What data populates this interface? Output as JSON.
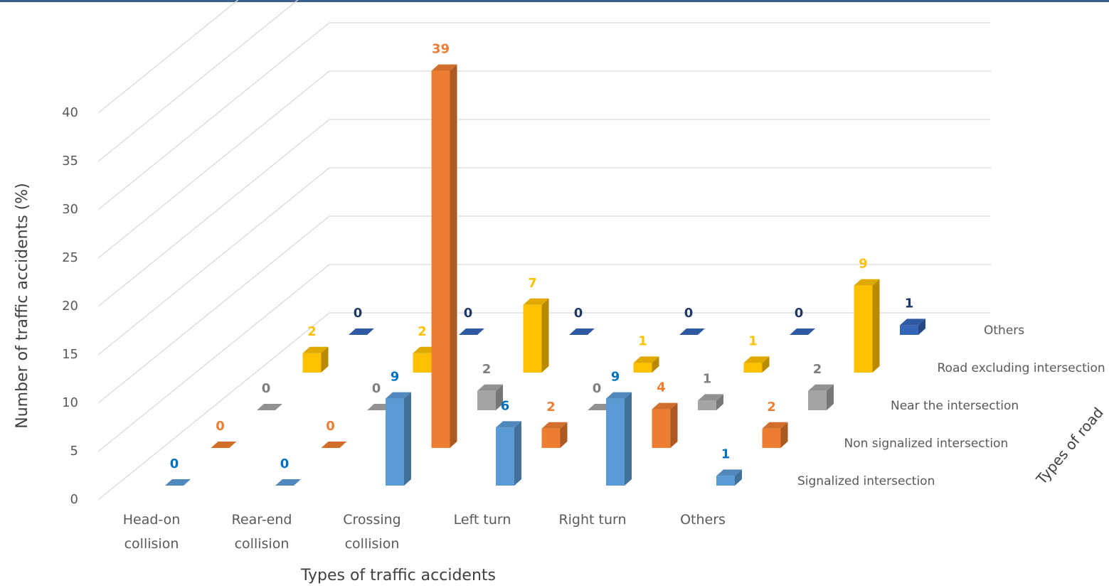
{
  "chart_data": {
    "type": "bar3d",
    "y_label": "Number of traffic accidents (%)",
    "x_label": "Types of traffic accidents",
    "z_label": "Types of road",
    "categories": [
      "Head-on collision",
      "Rear-end collision",
      "Crossing collision",
      "Left turn",
      "Right turn",
      "Others"
    ],
    "series": [
      {
        "name": "Signalized intersection",
        "color": "#5b9bd5",
        "label_color": "#0070c0",
        "values": [
          0,
          0,
          9,
          6,
          9,
          1
        ]
      },
      {
        "name": "Non signalized intersection",
        "color": "#ed7d31",
        "label_color": "#ed7d31",
        "values": [
          0,
          0,
          39,
          2,
          4,
          2
        ]
      },
      {
        "name": "Near the intersection",
        "color": "#a5a5a5",
        "label_color": "#7f7f7f",
        "values": [
          0,
          0,
          2,
          0,
          1,
          2
        ]
      },
      {
        "name": "Road excluding intersection",
        "color": "#ffc000",
        "label_color": "#ffc000",
        "values": [
          2,
          2,
          7,
          1,
          1,
          9
        ]
      },
      {
        "name": "Others",
        "color": "#3565b8",
        "label_color": "#203864",
        "values": [
          0,
          0,
          0,
          0,
          0,
          1
        ]
      }
    ],
    "ylim": [
      0,
      45
    ],
    "yticks": [
      0,
      5,
      10,
      15,
      20,
      25,
      30,
      35,
      40
    ],
    "grid": true
  }
}
